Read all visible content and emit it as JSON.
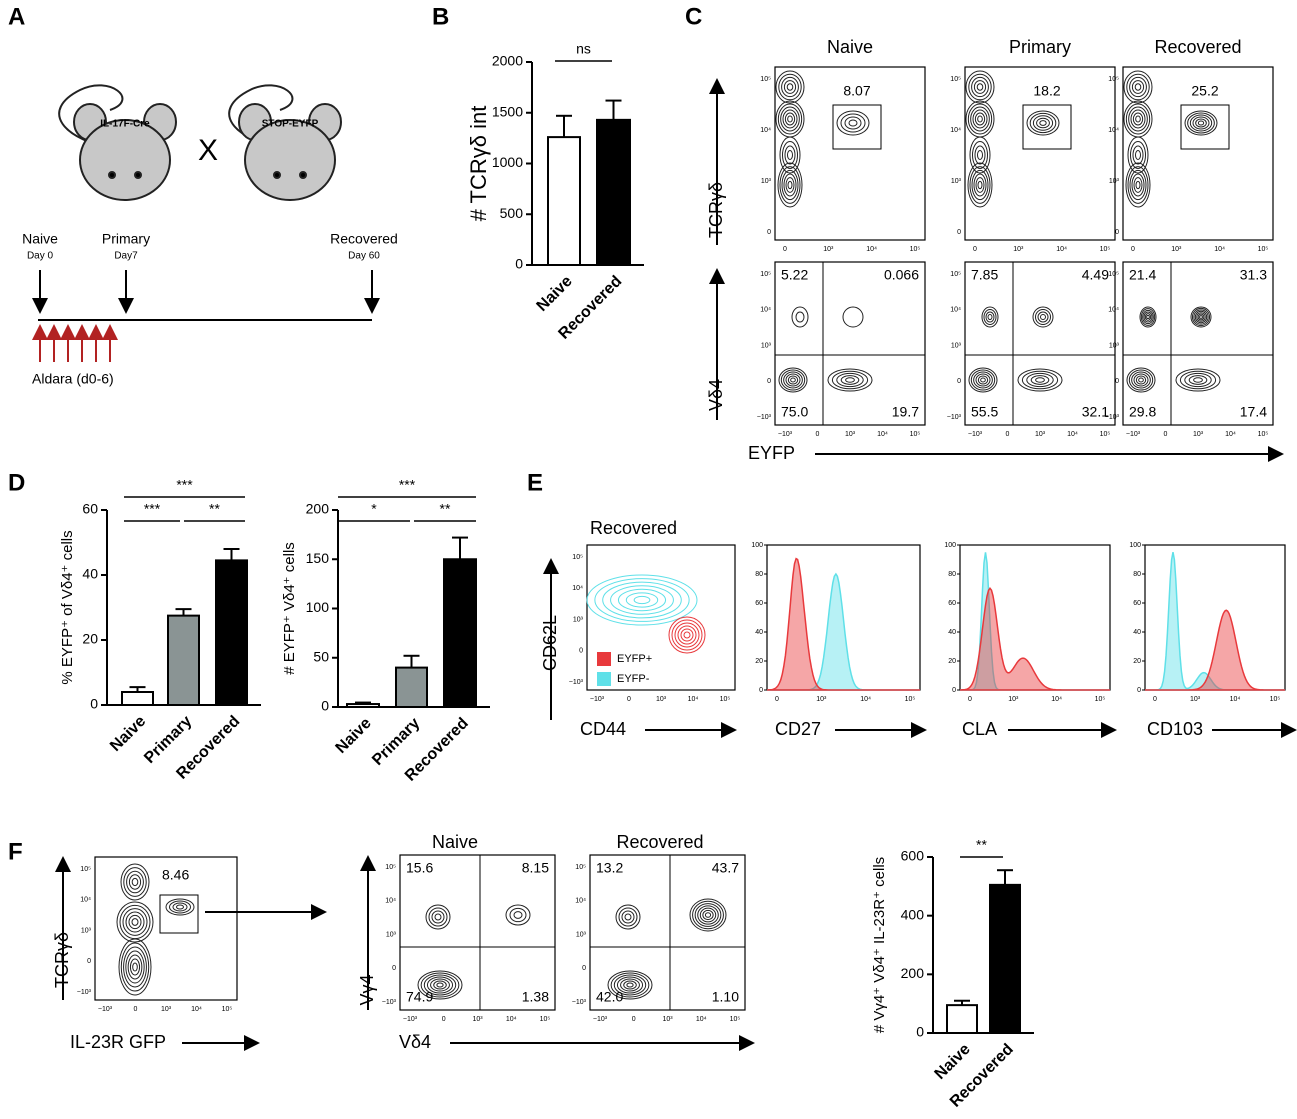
{
  "panel_labels": [
    "A",
    "B",
    "C",
    "D",
    "E",
    "F"
  ],
  "panel_a": {
    "strains": [
      "IL-17F-Cre",
      "STOP-EYFP"
    ],
    "cross_symbol": "X",
    "timepoints": [
      {
        "label": "Naive",
        "day": "Day 0"
      },
      {
        "label": "Primary",
        "day": "Day7"
      },
      {
        "label": "Recovered",
        "day": "Day 60"
      }
    ],
    "treatment": "Aldara (d0-6)"
  },
  "chart_data": [
    {
      "type": "bar",
      "y_label": "# TCRγδ int",
      "categories": [
        "Naive",
        "Recovered"
      ],
      "values": [
        1260,
        1430
      ],
      "errors": [
        210,
        190
      ],
      "colors": [
        "#ffffff",
        "#000000"
      ],
      "ylim": [
        0,
        2000
      ],
      "yticks": [
        0,
        500,
        1000,
        1500,
        2000
      ],
      "annotations": [
        "ns"
      ]
    },
    {
      "type": "bar",
      "y_label": "% EYFP⁺ of Vδ4⁺ cells",
      "categories": [
        "Naive",
        "Primary",
        "Recovered"
      ],
      "values": [
        4,
        27.5,
        44.5
      ],
      "errors": [
        1.5,
        2,
        3.5
      ],
      "colors": [
        "#ffffff",
        "#8a9494",
        "#000000"
      ],
      "ylim": [
        0,
        60
      ],
      "yticks": [
        0,
        20,
        40,
        60
      ],
      "annotations": [
        "***",
        "***",
        "**"
      ]
    },
    {
      "type": "bar",
      "y_label": "# EYFP⁺ Vδ4⁺ cells",
      "categories": [
        "Naive",
        "Primary",
        "Recovered"
      ],
      "values": [
        3,
        40,
        150
      ],
      "errors": [
        1.5,
        12,
        22
      ],
      "colors": [
        "#ffffff",
        "#8a9494",
        "#000000"
      ],
      "ylim": [
        0,
        200
      ],
      "yticks": [
        0,
        50,
        100,
        150,
        200
      ],
      "annotations": [
        "***",
        "*",
        "**"
      ]
    },
    {
      "type": "bar",
      "y_label": "# Vγ4⁺ Vδ4⁺ IL-23R⁺ cells",
      "categories": [
        "Naive",
        "Recovered"
      ],
      "values": [
        95,
        505
      ],
      "errors": [
        15,
        50
      ],
      "colors": [
        "#ffffff",
        "#000000"
      ],
      "ylim": [
        0,
        600
      ],
      "yticks": [
        0,
        200,
        400,
        600
      ],
      "annotations": [
        "**"
      ]
    }
  ],
  "flow_ticks": [
    "−10³",
    "0",
    "10³",
    "10⁴",
    "10⁵"
  ],
  "panel_c": {
    "columns": [
      "Naive",
      "Primary",
      "Recovered"
    ],
    "y_labels": [
      "TCRγδ",
      "Vδ4"
    ],
    "x_label": "EYFP",
    "gate_values": [
      "8.07",
      "18.2",
      "25.2"
    ],
    "quadrants": [
      [
        "5.22",
        "0.066",
        "75.0",
        "19.7"
      ],
      [
        "7.85",
        "4.49",
        "55.5",
        "32.1"
      ],
      [
        "21.4",
        "31.3",
        "29.8",
        "17.4"
      ]
    ]
  },
  "panel_e": {
    "title": "Recovered",
    "y_label": "CD62L",
    "x_labels": [
      "CD44",
      "CD27",
      "CLA",
      "CD103"
    ],
    "legend": [
      {
        "name": "EYFP+",
        "color": "#e8393c"
      },
      {
        "name": "EYFP-",
        "color": "#5fe0e8"
      }
    ],
    "histogram_ticks": [
      0,
      20,
      40,
      60,
      80,
      100
    ]
  },
  "panel_f": {
    "gate_y_label": "TCRγδ",
    "gate_x_label": "IL-23R GFP",
    "gate_value": "8.46",
    "columns": [
      "Naive",
      "Recovered"
    ],
    "y_label": "Vγ4",
    "x_label": "Vδ4",
    "quadrants": [
      [
        "15.6",
        "8.15",
        "74.9",
        "1.38"
      ],
      [
        "13.2",
        "43.7",
        "42.0",
        "1.10"
      ]
    ]
  }
}
